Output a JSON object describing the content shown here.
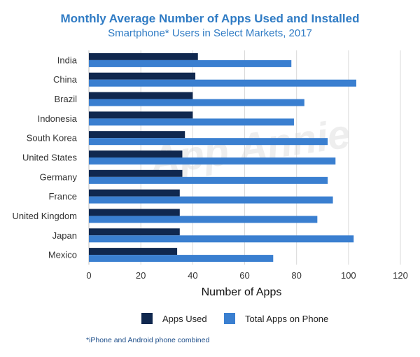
{
  "chart_data": {
    "type": "bar",
    "orientation": "horizontal",
    "title": "Monthly Average Number of Apps Used and Installed",
    "subtitle": "Smartphone* Users in Select Markets, 2017",
    "xlabel": "Number of Apps",
    "ylabel": "",
    "xlim": [
      0,
      120
    ],
    "xticks": [
      0,
      20,
      40,
      60,
      80,
      100,
      120
    ],
    "grid": true,
    "legend_position": "bottom",
    "categories": [
      "India",
      "China",
      "Brazil",
      "Indonesia",
      "South Korea",
      "United States",
      "Germany",
      "France",
      "United Kingdom",
      "Japan",
      "Mexico"
    ],
    "series": [
      {
        "name": "Apps Used",
        "color": "#10284f",
        "values": [
          42,
          41,
          40,
          40,
          37,
          36,
          36,
          35,
          35,
          35,
          34
        ]
      },
      {
        "name": "Total Apps on Phone",
        "color": "#3a7fd0",
        "values": [
          78,
          103,
          83,
          79,
          92,
          95,
          92,
          94,
          88,
          102,
          71
        ]
      }
    ],
    "watermark": "App Annie",
    "footnote": "*iPhone and Android phone combined"
  }
}
